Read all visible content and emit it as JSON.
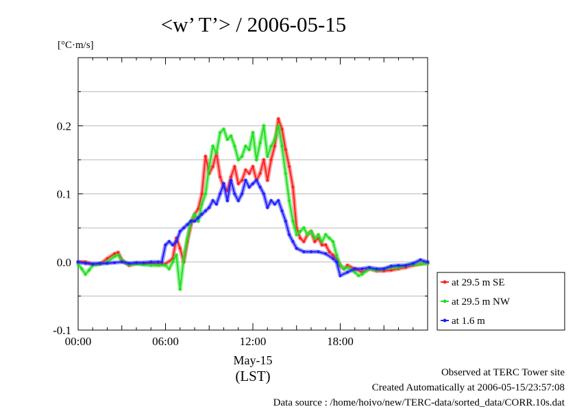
{
  "chart_data": {
    "type": "line",
    "title": "<w’ T’> / 2006-05-15",
    "ylabel": "[°C·m/s]",
    "xlabel": "May-15",
    "xlabel_sub": "(LST)",
    "x_unit": "hour (LST)",
    "xlim": [
      0,
      24
    ],
    "ylim": [
      -0.1,
      0.3
    ],
    "x_ticks": [
      "00:00",
      "06:00",
      "12:00",
      "18:00"
    ],
    "y_ticks": [
      "-0.1",
      "0.0",
      "0.1",
      "0.2"
    ],
    "grid": "horizontal",
    "legend_position": "right",
    "series": [
      {
        "name": "at 29.5 m SE",
        "color": "#ff2020",
        "x": [
          0.0,
          0.5,
          1.0,
          1.5,
          2.0,
          2.5,
          2.75,
          3.0,
          3.5,
          4.0,
          4.5,
          5.0,
          5.5,
          6.0,
          6.5,
          6.75,
          7.0,
          7.25,
          7.5,
          7.75,
          8.0,
          8.25,
          8.5,
          8.75,
          9.0,
          9.25,
          9.5,
          9.75,
          10.0,
          10.25,
          10.5,
          10.75,
          11.0,
          11.25,
          11.5,
          11.75,
          12.0,
          12.25,
          12.5,
          12.75,
          13.0,
          13.25,
          13.5,
          13.75,
          14.0,
          14.25,
          14.5,
          14.75,
          15.0,
          15.25,
          15.5,
          15.75,
          16.0,
          16.25,
          16.5,
          16.75,
          17.0,
          17.25,
          17.5,
          17.75,
          18.0,
          18.25,
          18.5,
          19.0,
          19.5,
          20.0,
          20.5,
          21.0,
          21.5,
          22.0,
          22.5,
          23.0,
          23.5,
          24.0
        ],
        "y": [
          0.0,
          0.0,
          -0.003,
          -0.003,
          0.005,
          0.012,
          0.014,
          0.003,
          -0.005,
          -0.002,
          -0.003,
          -0.002,
          -0.003,
          -0.003,
          0.005,
          0.035,
          0.02,
          0.0,
          0.03,
          0.055,
          0.07,
          0.078,
          0.1,
          0.155,
          0.13,
          0.14,
          0.16,
          0.125,
          0.11,
          0.105,
          0.125,
          0.14,
          0.115,
          0.12,
          0.135,
          0.13,
          0.14,
          0.12,
          0.13,
          0.15,
          0.12,
          0.15,
          0.17,
          0.21,
          0.195,
          0.165,
          0.14,
          0.11,
          0.05,
          0.035,
          0.03,
          0.04,
          0.045,
          0.03,
          0.035,
          0.025,
          0.025,
          0.015,
          0.01,
          0.005,
          -0.005,
          -0.01,
          -0.005,
          -0.01,
          -0.015,
          -0.01,
          -0.013,
          -0.013,
          -0.012,
          -0.01,
          -0.008,
          -0.005,
          -0.003,
          -0.002
        ]
      },
      {
        "name": "at 29.5 m NW",
        "color": "#20e020",
        "x": [
          0.0,
          0.25,
          0.5,
          0.75,
          1.0,
          1.5,
          2.0,
          2.5,
          2.75,
          3.0,
          3.5,
          4.0,
          4.5,
          5.0,
          5.5,
          6.0,
          6.25,
          6.5,
          6.75,
          7.0,
          7.25,
          7.5,
          7.75,
          8.0,
          8.25,
          8.5,
          8.75,
          9.0,
          9.25,
          9.5,
          9.75,
          10.0,
          10.25,
          10.5,
          10.75,
          11.0,
          11.25,
          11.5,
          11.75,
          12.0,
          12.25,
          12.5,
          12.75,
          13.0,
          13.25,
          13.5,
          13.75,
          14.0,
          14.25,
          14.5,
          14.75,
          15.0,
          15.25,
          15.5,
          15.75,
          16.0,
          16.25,
          16.5,
          16.75,
          17.0,
          17.25,
          17.5,
          17.75,
          18.0,
          18.25,
          18.5,
          19.0,
          19.25,
          19.5,
          20.0,
          20.5,
          21.0,
          21.5,
          22.0,
          22.5,
          23.0,
          23.5,
          24.0
        ],
        "y": [
          -0.003,
          -0.01,
          -0.018,
          -0.012,
          -0.005,
          -0.003,
          0.0,
          0.008,
          0.01,
          0.002,
          -0.004,
          -0.003,
          -0.004,
          -0.005,
          -0.005,
          -0.005,
          -0.01,
          0.0,
          0.01,
          -0.04,
          0.005,
          0.035,
          0.06,
          0.07,
          0.06,
          0.085,
          0.1,
          0.14,
          0.17,
          0.16,
          0.19,
          0.195,
          0.18,
          0.185,
          0.17,
          0.15,
          0.155,
          0.17,
          0.165,
          0.19,
          0.15,
          0.175,
          0.2,
          0.155,
          0.17,
          0.18,
          0.2,
          0.17,
          0.13,
          0.09,
          0.06,
          0.04,
          0.045,
          0.05,
          0.04,
          0.045,
          0.035,
          0.04,
          0.03,
          0.04,
          0.035,
          0.03,
          0.01,
          -0.005,
          -0.01,
          -0.008,
          -0.015,
          -0.02,
          -0.018,
          -0.01,
          -0.012,
          -0.01,
          -0.008,
          -0.008,
          -0.005,
          -0.004,
          -0.003,
          -0.002
        ]
      },
      {
        "name": "at 1.6 m",
        "color": "#2020ff",
        "x": [
          0.0,
          0.5,
          1.0,
          1.5,
          2.0,
          2.5,
          3.0,
          3.5,
          4.0,
          4.5,
          5.0,
          5.5,
          5.75,
          6.0,
          6.25,
          6.5,
          6.75,
          7.0,
          7.25,
          7.5,
          7.75,
          8.0,
          8.25,
          8.5,
          8.75,
          9.0,
          9.25,
          9.5,
          9.75,
          10.0,
          10.25,
          10.5,
          10.75,
          11.0,
          11.25,
          11.5,
          11.75,
          12.0,
          12.25,
          12.5,
          12.75,
          13.0,
          13.25,
          13.5,
          13.75,
          14.0,
          14.25,
          14.5,
          14.75,
          15.0,
          15.5,
          16.0,
          16.5,
          17.0,
          17.5,
          17.75,
          18.0,
          18.5,
          19.0,
          19.5,
          20.0,
          20.5,
          21.0,
          21.5,
          22.0,
          22.5,
          23.0,
          23.5,
          24.0
        ],
        "y": [
          0.0,
          -0.002,
          -0.003,
          -0.002,
          -0.002,
          -0.001,
          0.0,
          -0.002,
          -0.001,
          -0.001,
          0.0,
          0.0,
          0.0,
          0.025,
          0.03,
          0.025,
          0.03,
          0.045,
          0.05,
          0.055,
          0.06,
          0.06,
          0.065,
          0.07,
          0.075,
          0.08,
          0.09,
          0.085,
          0.1,
          0.115,
          0.09,
          0.12,
          0.1,
          0.09,
          0.1,
          0.12,
          0.11,
          0.115,
          0.12,
          0.11,
          0.1,
          0.08,
          0.09,
          0.085,
          0.09,
          0.075,
          0.06,
          0.04,
          0.03,
          0.02,
          0.015,
          0.015,
          0.015,
          0.012,
          0.005,
          0.0,
          -0.02,
          -0.015,
          -0.01,
          -0.01,
          -0.008,
          -0.01,
          -0.01,
          -0.006,
          -0.005,
          -0.005,
          -0.002,
          0.003,
          0.0
        ]
      }
    ]
  },
  "footer": {
    "site": "Observed at TERC Tower site",
    "created": "Created Automatically at 2006-05-15/23:57:08",
    "source": "Data source : /home/hoivo/new/TERC-data/sorted_data/CORR.10s.dat"
  }
}
